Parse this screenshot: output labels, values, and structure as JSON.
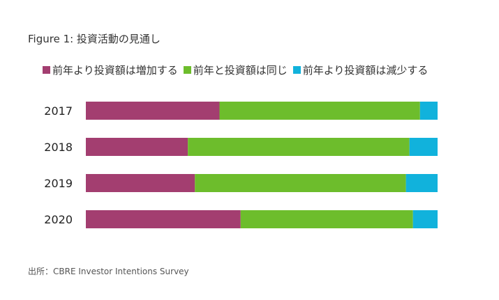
{
  "figure_title": "Figure 1: 投資活動の見通し",
  "source": "出所：CBRE Investor Intentions Survey",
  "colors": {
    "increase": "#a33e70",
    "same": "#6dbd2c",
    "decrease": "#11b2dc"
  },
  "chart_data": {
    "type": "bar",
    "orientation": "horizontal",
    "stacked": true,
    "percent_stacked": true,
    "categories": [
      "2017",
      "2018",
      "2019",
      "2020"
    ],
    "series": [
      {
        "name": "前年より投資額は増加する",
        "color": "#a33e70",
        "values": [
          38,
          29,
          31,
          44
        ]
      },
      {
        "name": "前年と投資額は同じ",
        "color": "#6dbd2c",
        "values": [
          57,
          63,
          60,
          49
        ]
      },
      {
        "name": "前年より投資額は減少する",
        "color": "#11b2dc",
        "values": [
          5,
          8,
          9,
          7
        ]
      }
    ],
    "xlim": [
      0,
      100
    ],
    "grid": false,
    "legend_position": "top"
  }
}
